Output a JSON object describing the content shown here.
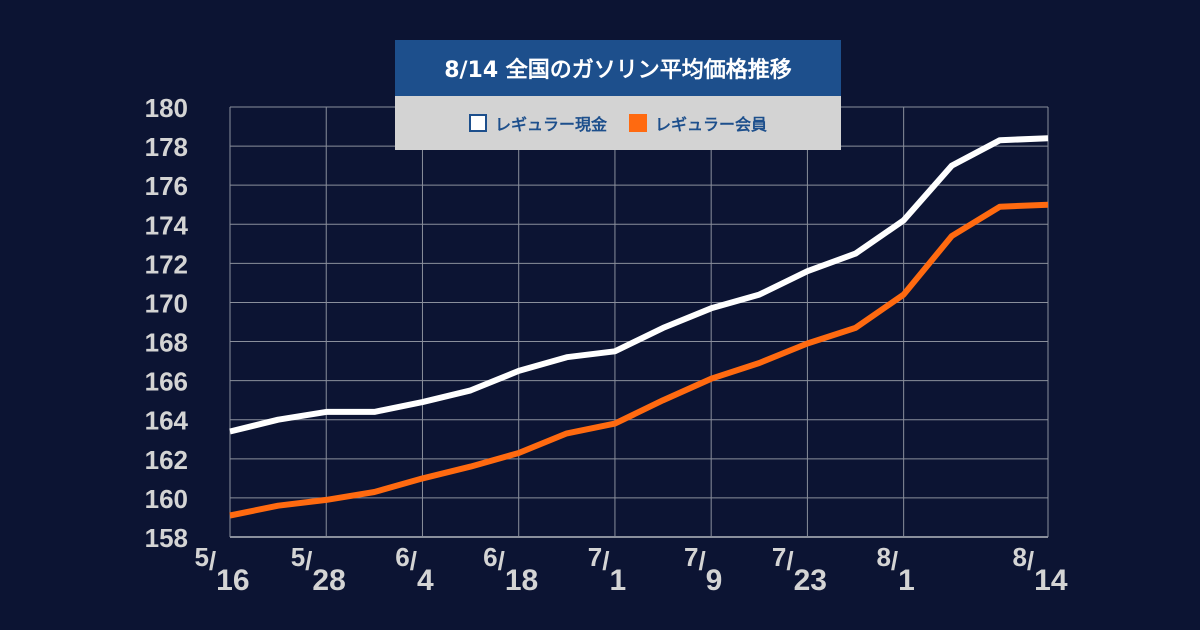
{
  "chart_data": {
    "type": "line",
    "title": "8/14  全国のガソリン平均価格推移",
    "x_labels": [
      "5/16",
      "5/28",
      "6/4",
      "6/18",
      "7/1",
      "7/9",
      "7/23",
      "8/1",
      "8/14"
    ],
    "x_label_positions": [
      0,
      2,
      4,
      6,
      8,
      10,
      12,
      14,
      17
    ],
    "x_points": 18,
    "ylim": [
      158,
      180
    ],
    "yticks": [
      158,
      160,
      162,
      164,
      166,
      168,
      170,
      172,
      174,
      176,
      178,
      180
    ],
    "grid": true,
    "legend_position": "top-center",
    "series": [
      {
        "name": "レギュラー現金",
        "color": "#ffffff",
        "values": [
          163.4,
          164.0,
          164.4,
          164.4,
          164.9,
          165.5,
          166.5,
          167.2,
          167.5,
          168.7,
          169.7,
          170.4,
          171.6,
          172.5,
          174.2,
          177.0,
          178.3,
          178.4
        ]
      },
      {
        "name": "レギュラー会員",
        "color": "#ff6a10",
        "values": [
          159.1,
          159.6,
          159.9,
          160.3,
          161.0,
          161.6,
          162.3,
          163.3,
          163.8,
          165.0,
          166.1,
          166.9,
          167.9,
          168.7,
          170.4,
          173.4,
          174.9,
          175.0
        ]
      }
    ]
  },
  "colors": {
    "background": "#0c1433",
    "title_bg": "#1d4f8c",
    "legend_bg": "#d3d3d3",
    "legend_text": "#1d4f8c",
    "grid": "#8a8f9c",
    "tick_text": "#d4d4d4"
  }
}
